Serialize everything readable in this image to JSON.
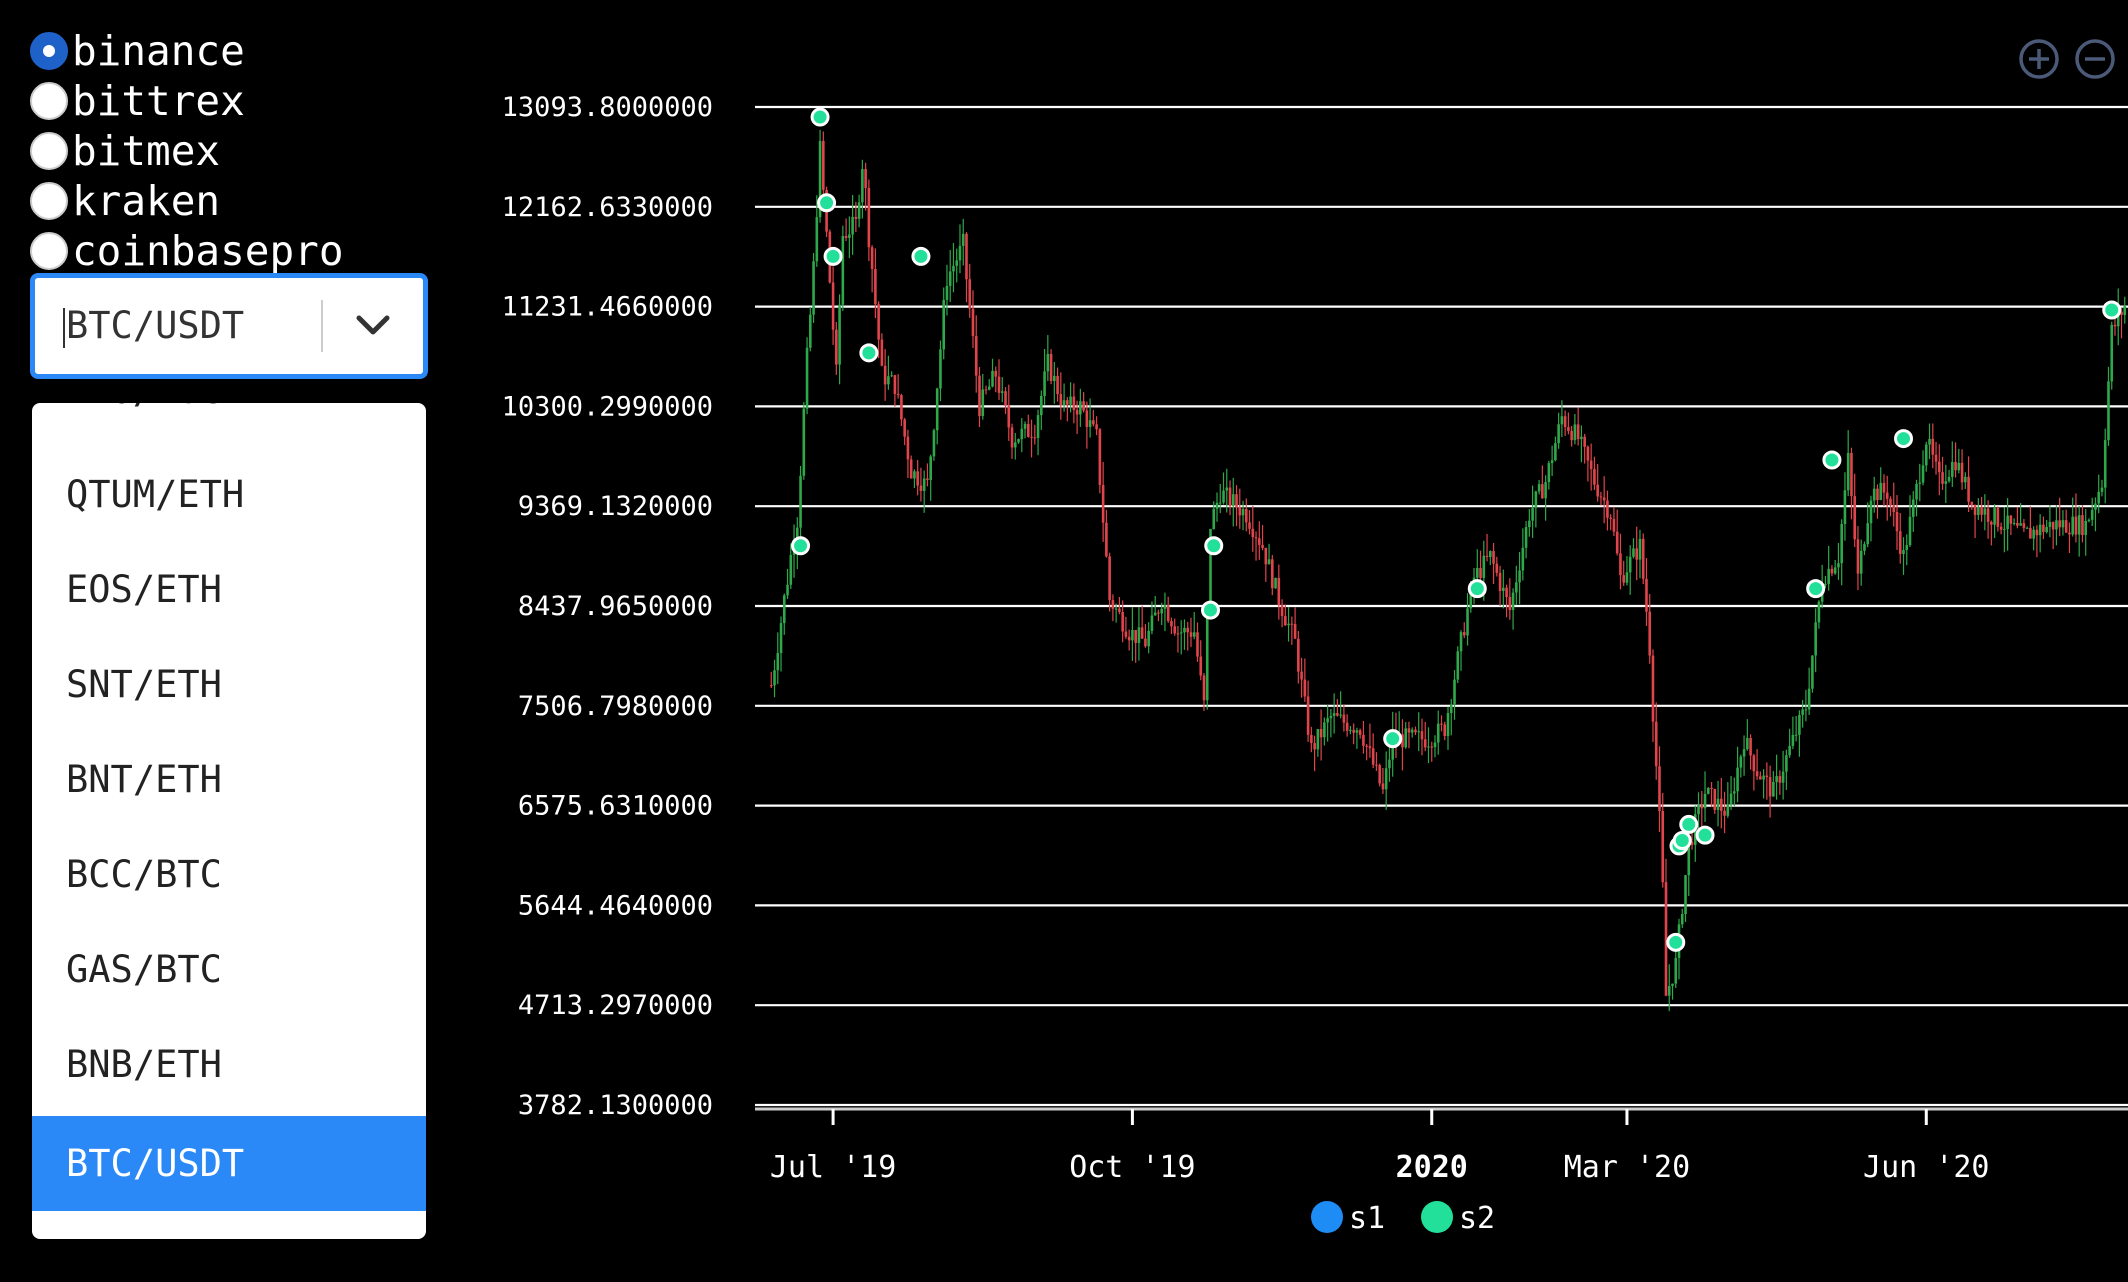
{
  "exchanges": [
    {
      "label": "binance",
      "checked": true
    },
    {
      "label": "bittrex",
      "checked": false
    },
    {
      "label": "bitmex",
      "checked": false
    },
    {
      "label": "kraken",
      "checked": false
    },
    {
      "label": "coinbasepro",
      "checked": false
    }
  ],
  "pair_select": {
    "value": "BTC/USDT",
    "options": [
      "NEO/BTC",
      "QTUM/ETH",
      "EOS/ETH",
      "SNT/ETH",
      "BNT/ETH",
      "BCC/BTC",
      "GAS/BTC",
      "BNB/ETH",
      "BTC/USDT"
    ],
    "selected": "BTC/USDT"
  },
  "icons": {
    "zoom_in": "zoom-in-icon",
    "zoom_out": "zoom-out-icon",
    "dropdown": "chevron-down-icon"
  },
  "colors": {
    "up": "#2ea84a",
    "down": "#e0454c",
    "s1": "#1e8cf5",
    "s2": "#22e09a",
    "accent": "#2b88f7",
    "grid": "#ffffff"
  },
  "chart_data": {
    "type": "candlestick",
    "y_ticks": [
      "3782.1300000",
      "4713.2970000",
      "5644.4640000",
      "6575.6310000",
      "7506.7980000",
      "8437.9650000",
      "9369.1320000",
      "10300.2990000",
      "11231.4660000",
      "12162.6330000",
      "13093.8000000"
    ],
    "ylim": [
      3782.13,
      13093.8
    ],
    "x_ticks": [
      {
        "label": "Jul '19",
        "date": "2019-07-01"
      },
      {
        "label": "Oct '19",
        "date": "2019-10-01"
      },
      {
        "label": "2020",
        "date": "2020-01-01",
        "bold": true
      },
      {
        "label": "Mar '20",
        "date": "2020-03-01"
      },
      {
        "label": "Jun '20",
        "date": "2020-06-01"
      }
    ],
    "xlim": [
      "2019-06-07",
      "2020-08-02"
    ],
    "grid": true,
    "legend": {
      "placement": "bottom-center",
      "items": [
        {
          "name": "s1",
          "color": "#1e8cf5"
        },
        {
          "name": "s2",
          "color": "#22e09a"
        }
      ]
    },
    "series": [
      {
        "name": "price",
        "points": [
          [
            "2019-06-12",
            7700
          ],
          [
            "2019-06-20",
            9300
          ],
          [
            "2019-06-25",
            11600
          ],
          [
            "2019-06-27",
            12700
          ],
          [
            "2019-06-29",
            11900
          ],
          [
            "2019-07-02",
            10600
          ],
          [
            "2019-07-04",
            11900
          ],
          [
            "2019-07-08",
            12000
          ],
          [
            "2019-07-10",
            12600
          ],
          [
            "2019-07-16",
            10600
          ],
          [
            "2019-07-20",
            10500
          ],
          [
            "2019-07-25",
            9700
          ],
          [
            "2019-07-30",
            9550
          ],
          [
            "2019-08-05",
            11500
          ],
          [
            "2019-08-10",
            11800
          ],
          [
            "2019-08-15",
            10300
          ],
          [
            "2019-08-20",
            10600
          ],
          [
            "2019-08-25",
            10000
          ],
          [
            "2019-09-01",
            10100
          ],
          [
            "2019-09-05",
            10700
          ],
          [
            "2019-09-10",
            10300
          ],
          [
            "2019-09-15",
            10300
          ],
          [
            "2019-09-20",
            10000
          ],
          [
            "2019-09-24",
            8500
          ],
          [
            "2019-09-30",
            8200
          ],
          [
            "2019-10-05",
            8100
          ],
          [
            "2019-10-10",
            8500
          ],
          [
            "2019-10-15",
            8200
          ],
          [
            "2019-10-20",
            8200
          ],
          [
            "2019-10-23",
            7500
          ],
          [
            "2019-10-25",
            9200
          ],
          [
            "2019-10-28",
            9500
          ],
          [
            "2019-11-05",
            9300
          ],
          [
            "2019-11-10",
            9000
          ],
          [
            "2019-11-15",
            8500
          ],
          [
            "2019-11-20",
            8100
          ],
          [
            "2019-11-25",
            7100
          ],
          [
            "2019-12-01",
            7400
          ],
          [
            "2019-12-10",
            7300
          ],
          [
            "2019-12-17",
            6700
          ],
          [
            "2019-12-20",
            7200
          ],
          [
            "2019-12-31",
            7200
          ],
          [
            "2020-01-05",
            7300
          ],
          [
            "2020-01-10",
            8100
          ],
          [
            "2020-01-14",
            8700
          ],
          [
            "2020-01-19",
            8900
          ],
          [
            "2020-01-25",
            8400
          ],
          [
            "2020-01-31",
            9300
          ],
          [
            "2020-02-05",
            9600
          ],
          [
            "2020-02-10",
            10200
          ],
          [
            "2020-02-15",
            10000
          ],
          [
            "2020-02-20",
            9600
          ],
          [
            "2020-02-25",
            9300
          ],
          [
            "2020-02-28",
            8700
          ],
          [
            "2020-03-05",
            9000
          ],
          [
            "2020-03-08",
            8100
          ],
          [
            "2020-03-12",
            5800
          ],
          [
            "2020-03-13",
            4800
          ],
          [
            "2020-03-16",
            5100
          ],
          [
            "2020-03-20",
            6200
          ],
          [
            "2020-03-25",
            6700
          ],
          [
            "2020-04-01",
            6500
          ],
          [
            "2020-04-06",
            7200
          ],
          [
            "2020-04-10",
            6900
          ],
          [
            "2020-04-15",
            6700
          ],
          [
            "2020-04-20",
            7100
          ],
          [
            "2020-04-25",
            7500
          ],
          [
            "2020-04-30",
            8700
          ],
          [
            "2020-05-05",
            8900
          ],
          [
            "2020-05-08",
            9800
          ],
          [
            "2020-05-11",
            8700
          ],
          [
            "2020-05-15",
            9500
          ],
          [
            "2020-05-20",
            9500
          ],
          [
            "2020-05-25",
            8900
          ],
          [
            "2020-06-01",
            10000
          ],
          [
            "2020-06-05",
            9600
          ],
          [
            "2020-06-10",
            9800
          ],
          [
            "2020-06-15",
            9400
          ],
          [
            "2020-06-20",
            9300
          ],
          [
            "2020-06-25",
            9200
          ],
          [
            "2020-07-01",
            9100
          ],
          [
            "2020-07-10",
            9200
          ],
          [
            "2020-07-20",
            9200
          ],
          [
            "2020-07-25",
            9600
          ],
          [
            "2020-07-28",
            11000
          ],
          [
            "2020-08-02",
            11300
          ]
        ]
      },
      {
        "name": "markers",
        "points": [
          [
            "2019-06-21",
            9000
          ],
          [
            "2019-06-27",
            13000
          ],
          [
            "2019-06-29",
            12200
          ],
          [
            "2019-07-01",
            11700
          ],
          [
            "2019-07-12",
            10800
          ],
          [
            "2019-07-28",
            11700
          ],
          [
            "2019-10-25",
            8400
          ],
          [
            "2019-10-26",
            9000
          ],
          [
            "2019-12-20",
            7200
          ],
          [
            "2020-01-15",
            8600
          ],
          [
            "2020-03-16",
            5300
          ],
          [
            "2020-03-17",
            6200
          ],
          [
            "2020-03-18",
            6250
          ],
          [
            "2020-03-20",
            6400
          ],
          [
            "2020-03-25",
            6300
          ],
          [
            "2020-04-28",
            8600
          ],
          [
            "2020-05-03",
            9800
          ],
          [
            "2020-05-25",
            10000
          ],
          [
            "2020-07-28",
            11200
          ]
        ]
      }
    ]
  }
}
